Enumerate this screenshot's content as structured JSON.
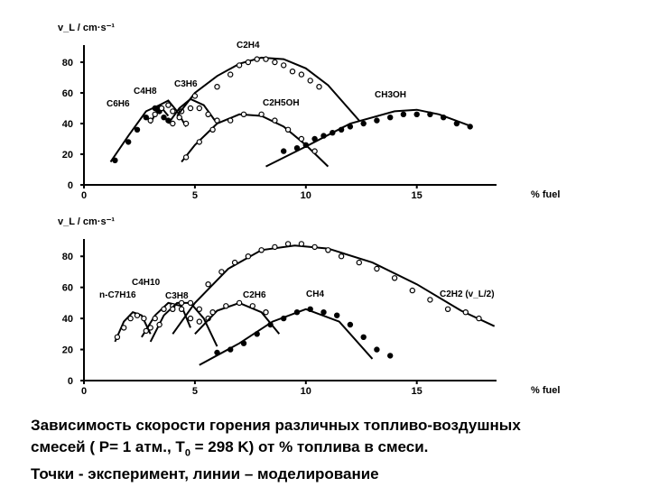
{
  "caption": {
    "line1": "Зависимость скорости горения различных топливо-воздушных",
    "line2_a": "смесей ( P= 1 атм., T",
    "line2_sub": "0",
    "line2_b": " = 298 K) от  % топлива в смеси.",
    "line3": "Точки - эксперимент, линии – моделирование"
  },
  "chart_data": [
    {
      "type": "line",
      "ylabel": "v_L / cm·s⁻¹",
      "xlabel": "% fuel",
      "xlim": [
        0,
        19
      ],
      "ylim": [
        0,
        90
      ],
      "xticks": [
        "0",
        "5",
        "10",
        "15"
      ],
      "yticks": [
        "0",
        "20",
        "40",
        "60",
        "80"
      ],
      "series": [
        {
          "name": "C6H6",
          "x": [
            1.2,
            2.0,
            2.8,
            3.4,
            3.8
          ],
          "y": [
            15,
            32,
            48,
            52,
            45
          ],
          "points": [
            [
              1.4,
              16
            ],
            [
              2.0,
              28
            ],
            [
              2.4,
              36
            ],
            [
              2.8,
              44
            ],
            [
              3.2,
              50
            ],
            [
              3.4,
              48
            ],
            [
              3.6,
              44
            ],
            [
              3.8,
              42
            ]
          ]
        },
        {
          "name": "C4H8",
          "x": [
            3.0,
            3.4,
            3.8,
            4.2,
            4.6
          ],
          "y": [
            40,
            52,
            55,
            48,
            38
          ],
          "points": [
            [
              3.0,
              42
            ],
            [
              3.2,
              46
            ],
            [
              3.5,
              50
            ],
            [
              3.8,
              52
            ],
            [
              4.0,
              48
            ],
            [
              4.3,
              44
            ],
            [
              4.6,
              40
            ]
          ]
        },
        {
          "name": "C3H6",
          "x": [
            3.8,
            4.3,
            4.8,
            5.4,
            6.0
          ],
          "y": [
            40,
            50,
            56,
            52,
            40
          ],
          "points": [
            [
              4.0,
              40
            ],
            [
              4.4,
              48
            ],
            [
              4.8,
              50
            ],
            [
              5.2,
              50
            ],
            [
              5.6,
              46
            ],
            [
              6.0,
              42
            ]
          ]
        },
        {
          "name": "C2H4",
          "x": [
            4.2,
            5.0,
            6.0,
            7.0,
            8.0,
            9.0,
            10.0,
            11.0,
            12.4
          ],
          "y": [
            45,
            60,
            71,
            79,
            83,
            82,
            76,
            65,
            42
          ],
          "points": [
            [
              5.0,
              58
            ],
            [
              6.0,
              64
            ],
            [
              6.6,
              72
            ],
            [
              7.0,
              78
            ],
            [
              7.4,
              80
            ],
            [
              7.8,
              82
            ],
            [
              8.2,
              82
            ],
            [
              8.6,
              80
            ],
            [
              9.0,
              78
            ],
            [
              9.4,
              74
            ],
            [
              9.8,
              72
            ],
            [
              10.2,
              68
            ],
            [
              10.6,
              64
            ]
          ]
        },
        {
          "name": "C2H5OH",
          "x": [
            4.4,
            5.0,
            6.0,
            7.0,
            8.0,
            9.0,
            10.0,
            11.0
          ],
          "y": [
            15,
            26,
            40,
            46,
            45,
            38,
            26,
            12
          ],
          "points": [
            [
              4.6,
              18
            ],
            [
              5.2,
              28
            ],
            [
              5.8,
              36
            ],
            [
              6.6,
              42
            ],
            [
              7.2,
              46
            ],
            [
              8.0,
              46
            ],
            [
              8.6,
              42
            ],
            [
              9.2,
              36
            ],
            [
              9.8,
              30
            ],
            [
              10.4,
              22
            ]
          ]
        },
        {
          "name": "CH3OH",
          "x": [
            8.2,
            10.0,
            12.0,
            14.0,
            15.0,
            16.0,
            17.5
          ],
          "y": [
            12,
            25,
            40,
            48,
            49,
            46,
            38
          ],
          "points": [
            [
              9.0,
              22
            ],
            [
              9.6,
              24
            ],
            [
              10.0,
              26
            ],
            [
              10.4,
              30
            ],
            [
              10.8,
              32
            ],
            [
              11.2,
              34
            ],
            [
              11.6,
              36
            ],
            [
              12.0,
              38
            ],
            [
              12.6,
              40
            ],
            [
              13.2,
              42
            ],
            [
              13.8,
              44
            ],
            [
              14.4,
              46
            ],
            [
              15.0,
              46
            ],
            [
              15.6,
              46
            ],
            [
              16.2,
              44
            ],
            [
              16.8,
              40
            ],
            [
              17.4,
              38
            ]
          ]
        }
      ]
    },
    {
      "type": "line",
      "ylabel": "v_L / cm·s⁻¹",
      "xlabel": "% fuel",
      "xlim": [
        0,
        19
      ],
      "ylim": [
        0,
        90
      ],
      "xticks": [
        "0",
        "5",
        "10",
        "15"
      ],
      "yticks": [
        "0",
        "20",
        "40",
        "60",
        "80"
      ],
      "series": [
        {
          "name": "n-C7H16",
          "x": [
            1.4,
            1.8,
            2.2,
            2.6,
            3.0
          ],
          "y": [
            25,
            38,
            44,
            42,
            30
          ],
          "points": [
            [
              1.5,
              28
            ],
            [
              1.8,
              34
            ],
            [
              2.1,
              40
            ],
            [
              2.4,
              42
            ],
            [
              2.7,
              40
            ],
            [
              3.0,
              34
            ]
          ]
        },
        {
          "name": "C4H10",
          "x": [
            2.6,
            3.2,
            3.8,
            4.4,
            4.8
          ],
          "y": [
            28,
            42,
            50,
            48,
            34
          ],
          "points": [
            [
              2.8,
              32
            ],
            [
              3.2,
              40
            ],
            [
              3.6,
              46
            ],
            [
              4.0,
              48
            ],
            [
              4.4,
              46
            ],
            [
              4.8,
              40
            ]
          ]
        },
        {
          "name": "C3H8",
          "x": [
            3.0,
            3.6,
            4.2,
            4.8,
            5.4,
            6.0
          ],
          "y": [
            25,
            42,
            50,
            50,
            40,
            22
          ],
          "points": [
            [
              3.4,
              36
            ],
            [
              4.0,
              46
            ],
            [
              4.4,
              50
            ],
            [
              4.8,
              50
            ],
            [
              5.2,
              46
            ],
            [
              5.6,
              40
            ]
          ]
        },
        {
          "name": "C2H6",
          "x": [
            5.0,
            6.0,
            7.0,
            8.0,
            8.8
          ],
          "y": [
            30,
            45,
            50,
            44,
            30
          ],
          "points": [
            [
              5.2,
              38
            ],
            [
              5.8,
              44
            ],
            [
              6.4,
              48
            ],
            [
              7.0,
              50
            ],
            [
              7.6,
              48
            ],
            [
              8.2,
              44
            ]
          ]
        },
        {
          "name": "C2H2 (v_L/2)",
          "x": [
            4.0,
            5.0,
            6.5,
            8.0,
            9.5,
            11.0,
            13.0,
            15.0,
            17.0,
            18.5
          ],
          "y": [
            30,
            50,
            72,
            84,
            87,
            85,
            76,
            62,
            45,
            35
          ],
          "points": [
            [
              5.6,
              62
            ],
            [
              6.2,
              70
            ],
            [
              6.8,
              76
            ],
            [
              7.4,
              80
            ],
            [
              8.0,
              84
            ],
            [
              8.6,
              86
            ],
            [
              9.2,
              88
            ],
            [
              9.8,
              88
            ],
            [
              10.4,
              86
            ],
            [
              11.0,
              84
            ],
            [
              11.6,
              80
            ],
            [
              12.4,
              76
            ],
            [
              13.2,
              72
            ],
            [
              14.0,
              66
            ],
            [
              14.8,
              58
            ],
            [
              15.6,
              52
            ],
            [
              16.4,
              46
            ],
            [
              17.2,
              44
            ],
            [
              17.8,
              40
            ]
          ]
        },
        {
          "name": "CH4",
          "x": [
            5.2,
            7.0,
            8.5,
            10.0,
            11.5,
            13.0
          ],
          "y": [
            10,
            24,
            38,
            46,
            38,
            14
          ],
          "points": [
            [
              6.0,
              18
            ],
            [
              6.6,
              20
            ],
            [
              7.2,
              24
            ],
            [
              7.8,
              30
            ],
            [
              8.4,
              36
            ],
            [
              9.0,
              40
            ],
            [
              9.6,
              44
            ],
            [
              10.2,
              46
            ],
            [
              10.8,
              44
            ],
            [
              11.4,
              42
            ],
            [
              12.0,
              36
            ],
            [
              12.6,
              28
            ],
            [
              13.2,
              20
            ],
            [
              13.8,
              16
            ]
          ]
        }
      ]
    }
  ]
}
